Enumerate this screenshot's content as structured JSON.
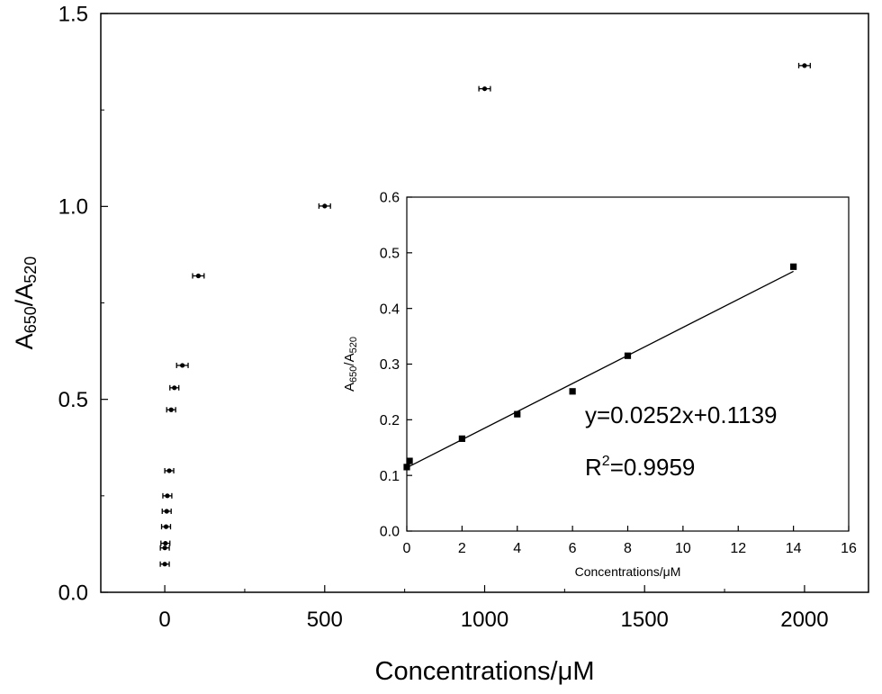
{
  "chart_data": [
    {
      "id": "main",
      "type": "scatter",
      "xlabel": "Concentrations/μM",
      "ylabel": {
        "base": "A",
        "sub1": "650",
        "slash": "/A",
        "sub2": "520"
      },
      "xlim": [
        -200,
        2200
      ],
      "ylim": [
        0,
        1.5
      ],
      "xticks": [
        0,
        500,
        1000,
        1500,
        2000
      ],
      "xtick_labels": [
        "0",
        "500",
        "1000",
        "1500",
        "2000"
      ],
      "yticks": [
        0.0,
        0.5,
        1.0,
        1.5
      ],
      "ytick_labels": [
        "0.0",
        "0.5",
        "1.0",
        "1.5"
      ],
      "grid": false,
      "series": [
        {
          "points": [
            {
              "x": 0,
              "y": 0.073,
              "err_x": 14
            },
            {
              "x": 0.1,
              "y": 0.115,
              "err_x": 14
            },
            {
              "x": 2,
              "y": 0.127,
              "err_x": 14
            },
            {
              "x": 4,
              "y": 0.17,
              "err_x": 14
            },
            {
              "x": 6,
              "y": 0.21,
              "err_x": 14
            },
            {
              "x": 8,
              "y": 0.25,
              "err_x": 14
            },
            {
              "x": 14,
              "y": 0.315,
              "err_x": 14
            },
            {
              "x": 20,
              "y": 0.473,
              "err_x": 14
            },
            {
              "x": 30,
              "y": 0.53,
              "err_x": 14
            },
            {
              "x": 55,
              "y": 0.588,
              "err_x": 18
            },
            {
              "x": 105,
              "y": 0.82,
              "err_x": 18
            },
            {
              "x": 500,
              "y": 1.001,
              "err_x": 18
            },
            {
              "x": 1000,
              "y": 1.305,
              "err_x": 18
            },
            {
              "x": 2000,
              "y": 1.365,
              "err_x": 18
            }
          ]
        }
      ]
    },
    {
      "id": "inset",
      "type": "scatter",
      "xlabel": "Concentrations/μM",
      "ylabel": {
        "base": "A",
        "sub1": "650",
        "slash": "/A",
        "sub2": "520"
      },
      "xlim": [
        0,
        16
      ],
      "ylim": [
        0,
        0.6
      ],
      "xticks": [
        0,
        2,
        4,
        6,
        8,
        10,
        12,
        14,
        16
      ],
      "xtick_labels": [
        "0",
        "2",
        "4",
        "6",
        "8",
        "10",
        "12",
        "14",
        "16"
      ],
      "yticks": [
        0.0,
        0.1,
        0.2,
        0.3,
        0.4,
        0.5,
        0.6
      ],
      "ytick_labels": [
        "0.0",
        "0.1",
        "0.2",
        "0.3",
        "0.4",
        "0.5",
        "0.6"
      ],
      "grid": false,
      "series": [
        {
          "points": [
            {
              "x": 0,
              "y": 0.115
            },
            {
              "x": 0.1,
              "y": 0.126
            },
            {
              "x": 2,
              "y": 0.166
            },
            {
              "x": 4,
              "y": 0.21
            },
            {
              "x": 6,
              "y": 0.251
            },
            {
              "x": 8,
              "y": 0.315
            },
            {
              "x": 14,
              "y": 0.475
            }
          ]
        }
      ],
      "fit_line": {
        "slope": 0.0252,
        "intercept": 0.1139,
        "x_range": [
          0,
          14
        ]
      },
      "annotations": {
        "equation": "y=0.0252x+0.1139",
        "r2_base": "R",
        "r2_sup": "2",
        "r2_value": "=0.9959"
      }
    }
  ]
}
